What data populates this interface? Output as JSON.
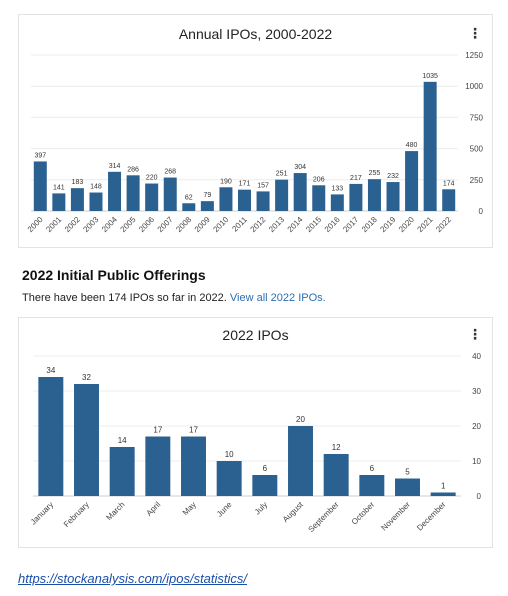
{
  "chart_data": [
    {
      "type": "bar",
      "title": "Annual IPOs, 2000-2022",
      "categories": [
        "2000",
        "2001",
        "2002",
        "2003",
        "2004",
        "2005",
        "2006",
        "2007",
        "2008",
        "2009",
        "2010",
        "2011",
        "2012",
        "2013",
        "2014",
        "2015",
        "2016",
        "2017",
        "2018",
        "2019",
        "2020",
        "2021",
        "2022"
      ],
      "values": [
        397,
        141,
        183,
        148,
        314,
        286,
        220,
        268,
        62,
        79,
        190,
        171,
        157,
        251,
        304,
        206,
        133,
        217,
        255,
        232,
        480,
        1035,
        174
      ],
      "yticks": [
        0,
        250,
        500,
        750,
        1000,
        1250
      ],
      "ylim": [
        0,
        1250
      ],
      "bar_color": "#2b6190",
      "grid": true
    },
    {
      "type": "bar",
      "title": "2022 IPOs",
      "categories": [
        "January",
        "February",
        "March",
        "April",
        "May",
        "June",
        "July",
        "August",
        "September",
        "October",
        "November",
        "December"
      ],
      "values": [
        34,
        32,
        14,
        17,
        17,
        10,
        6,
        20,
        12,
        6,
        5,
        1
      ],
      "yticks": [
        0,
        10,
        20,
        30,
        40
      ],
      "ylim": [
        0,
        40
      ],
      "bar_color": "#2b6190",
      "grid": true
    }
  ],
  "menu_icon": "⋮",
  "section": {
    "title": "2022 Initial Public Offerings",
    "text": "There have been 174 IPOs so far in 2022.",
    "link_text": "View all 2022 IPOs."
  },
  "source_url": "https://stockanalysis.com/ipos/statistics/"
}
